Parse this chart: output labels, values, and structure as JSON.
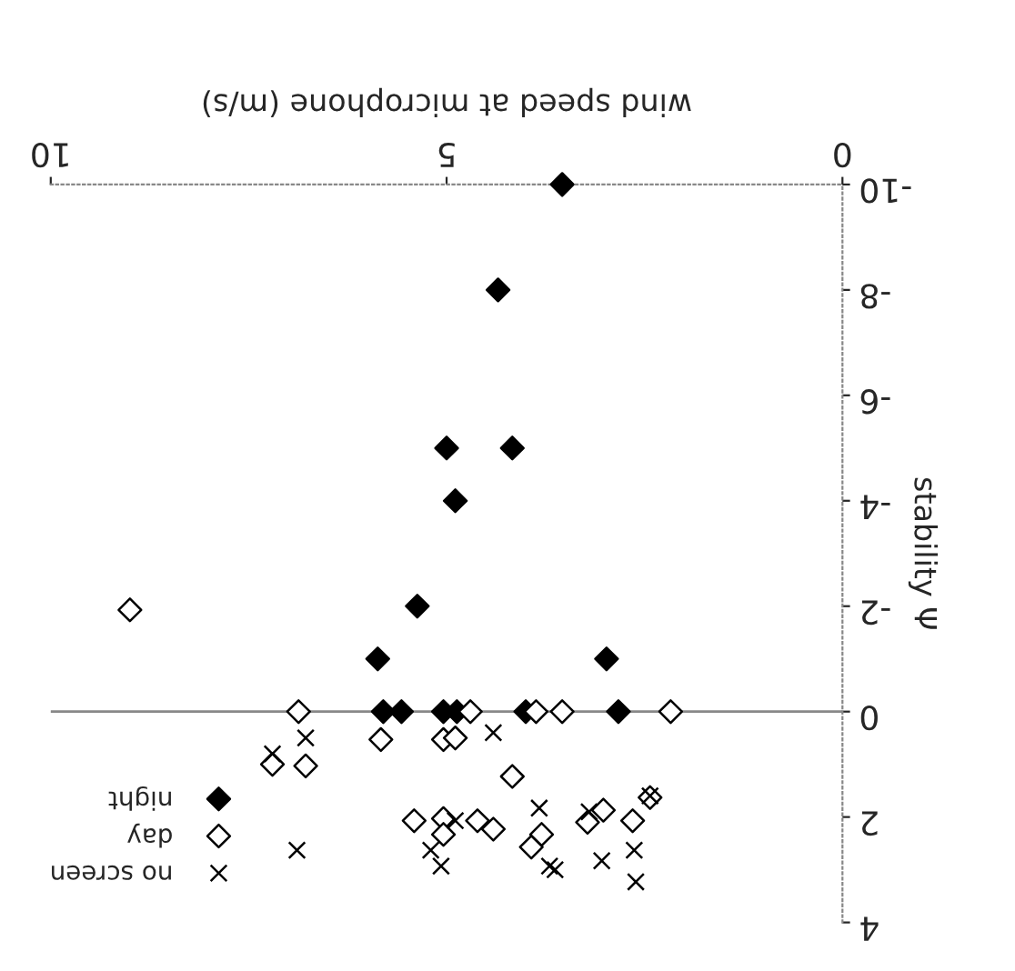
{
  "chart_data": {
    "type": "scatter",
    "xlabel": "wind speed at microphone (m/s)",
    "ylabel": "stability Ψ",
    "xlim": [
      10,
      0
    ],
    "ylim": [
      4,
      -10
    ],
    "xticks": [
      0,
      5,
      10
    ],
    "yticks": [
      -10,
      -8,
      -6,
      -4,
      -2,
      0,
      2,
      4
    ],
    "grid": false,
    "legend": "bottom left",
    "ref_lines": [
      {
        "axis": "y",
        "value": 0,
        "color": "#888888",
        "line_style": "solid"
      }
    ],
    "series": [
      {
        "name": "night",
        "color": "#000000",
        "marker": "diamond",
        "x": [
          3.54,
          4.35,
          5.0,
          4.17,
          4.89,
          5.37,
          5.87,
          2.98,
          5.8,
          5.57,
          5.04,
          4.87,
          4.0,
          2.83
        ],
        "values": [
          -10,
          -8,
          -5,
          -5,
          -4,
          -2,
          -1,
          -1,
          0,
          0,
          0,
          0,
          0,
          0
        ]
      },
      {
        "name": "day",
        "color": "#ffffff",
        "marker": "diamond",
        "x": [
          6.87,
          4.7,
          3.87,
          3.54,
          2.17,
          9.0,
          5.83,
          5.04,
          4.89,
          7.2,
          6.78,
          4.17,
          5.41,
          5.04,
          5.04,
          4.61,
          4.41,
          3.8,
          3.93,
          3.22,
          3.02,
          2.65,
          2.43
        ],
        "values": [
          0,
          0,
          0,
          0,
          0,
          -1.93,
          0.53,
          0.53,
          0.5,
          1.0,
          1.03,
          1.23,
          2.07,
          2.03,
          2.33,
          2.07,
          2.23,
          2.33,
          2.57,
          2.1,
          1.87,
          2.07,
          1.63
        ]
      },
      {
        "name": "no screen",
        "color": "#000000",
        "marker": "cross",
        "x": [
          6.78,
          7.2,
          4.41,
          6.89,
          5.2,
          5.07,
          4.89,
          3.83,
          3.2,
          3.63,
          3.7,
          3.04,
          2.63,
          2.61,
          2.43
        ],
        "values": [
          0.5,
          0.8,
          0.4,
          2.63,
          2.63,
          2.93,
          2.07,
          1.83,
          1.9,
          3.0,
          2.93,
          2.83,
          2.63,
          3.23,
          1.6
        ]
      }
    ]
  }
}
